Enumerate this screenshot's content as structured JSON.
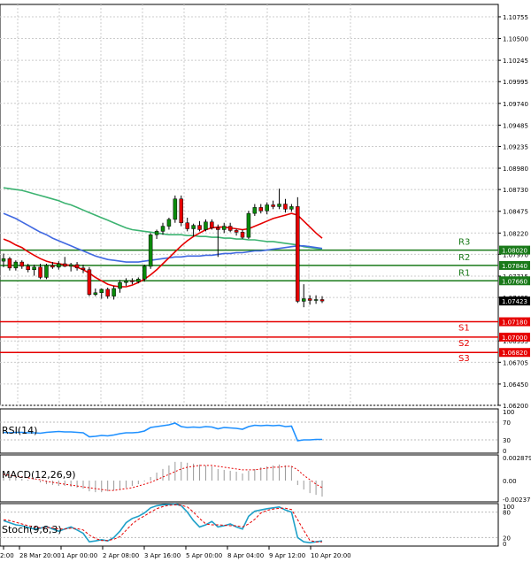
{
  "main_axis": {
    "ticks": [
      "1.10755",
      "1.10500",
      "1.10245",
      "1.09995",
      "1.09740",
      "1.09485",
      "1.09235",
      "1.08980",
      "1.08730",
      "1.08475",
      "1.08220",
      "1.07970",
      "1.07715",
      "1.07465",
      "1.06955",
      "1.06705",
      "1.06450",
      "1.06200"
    ],
    "ymin": 1.062,
    "ymax": 1.109
  },
  "price_tags": [
    {
      "label": "1.08020",
      "value": 1.0802,
      "color": "#1a7a1a"
    },
    {
      "label": "1.07840",
      "value": 1.0784,
      "color": "#1a7a1a"
    },
    {
      "label": "1.07660",
      "value": 1.0766,
      "color": "#1a7a1a"
    },
    {
      "label": "1.07423",
      "value": 1.07423,
      "color": "#000000"
    },
    {
      "label": "1.07180",
      "value": 1.0718,
      "color": "#e60000"
    },
    {
      "label": "1.07000",
      "value": 1.07,
      "color": "#e60000"
    },
    {
      "label": "1.06820",
      "value": 1.0682,
      "color": "#e60000"
    }
  ],
  "levels": [
    {
      "name": "R3",
      "value": 1.0802,
      "color": "#1a7a1a"
    },
    {
      "name": "R2",
      "value": 1.0784,
      "color": "#1a7a1a"
    },
    {
      "name": "R1",
      "value": 1.0766,
      "color": "#1a7a1a"
    },
    {
      "name": "S1",
      "value": 1.0718,
      "color": "#e60000"
    },
    {
      "name": "S2",
      "value": 1.07,
      "color": "#e60000"
    },
    {
      "name": "S3",
      "value": 1.0682,
      "color": "#e60000"
    }
  ],
  "x_axis": [
    "2:00",
    "28 Mar 20:00",
    "1 Apr 00:00",
    "2 Apr 08:00",
    "3 Apr 16:00",
    "5 Apr 00:00",
    "8 Apr 04:00",
    "9 Apr 12:00",
    "10 Apr 20:00"
  ],
  "rsi": {
    "label": "RSI(14)",
    "ticks": [
      "100",
      "70",
      "30",
      "0"
    ],
    "ymin": 0,
    "ymax": 100
  },
  "macd": {
    "label": "MACD(12,26,9)",
    "ticks": [
      "0.002879",
      "0.00",
      "-0.002379"
    ],
    "ymin": -0.002379,
    "ymax": 0.002879
  },
  "stoch": {
    "label": "Stoch(9,6,3)",
    "ticks": [
      "100",
      "80",
      "20",
      "0"
    ],
    "ymin": 0,
    "ymax": 100
  },
  "colors": {
    "bull": "#0a8a0a",
    "bear": "#e60000",
    "ma_green": "#3cb371",
    "ma_blue": "#4169e1",
    "ma_red": "#e60000",
    "rsi": "#1e90ff",
    "stoch_main": "#1fa0c8",
    "stoch_signal": "#e60000"
  },
  "chart_data": {
    "type": "candlestick",
    "candles": [
      [
        1.0789,
        1.0798,
        1.0782,
        1.0792
      ],
      [
        1.0792,
        1.0794,
        1.0778,
        1.0781
      ],
      [
        1.0781,
        1.079,
        1.0778,
        1.0788
      ],
      [
        1.0788,
        1.079,
        1.078,
        1.0783
      ],
      [
        1.0783,
        1.0786,
        1.0776,
        1.0779
      ],
      [
        1.0779,
        1.0785,
        1.0772,
        1.0782
      ],
      [
        1.0782,
        1.0786,
        1.0768,
        1.077
      ],
      [
        1.077,
        1.0786,
        1.0768,
        1.0784
      ],
      [
        1.0784,
        1.0788,
        1.078,
        1.0782
      ],
      [
        1.0782,
        1.0789,
        1.0779,
        1.0786
      ],
      [
        1.0786,
        1.0794,
        1.0782,
        1.0783
      ],
      [
        1.0783,
        1.0787,
        1.0777,
        1.0785
      ],
      [
        1.0785,
        1.0788,
        1.0778,
        1.0781
      ],
      [
        1.0781,
        1.0785,
        1.0775,
        1.0779
      ],
      [
        1.0779,
        1.0782,
        1.0748,
        1.075
      ],
      [
        1.075,
        1.0757,
        1.0748,
        1.0752
      ],
      [
        1.0752,
        1.0757,
        1.0745,
        1.0756
      ],
      [
        1.0756,
        1.0758,
        1.0745,
        1.0748
      ],
      [
        1.0748,
        1.076,
        1.0744,
        1.0757
      ],
      [
        1.0757,
        1.0767,
        1.0752,
        1.0764
      ],
      [
        1.0764,
        1.0769,
        1.076,
        1.0766
      ],
      [
        1.0766,
        1.0769,
        1.0762,
        1.0765
      ],
      [
        1.0765,
        1.077,
        1.0763,
        1.0768
      ],
      [
        1.0768,
        1.0785,
        1.0765,
        1.0783
      ],
      [
        1.0783,
        1.0822,
        1.078,
        1.082
      ],
      [
        1.082,
        1.0826,
        1.0815,
        1.0824
      ],
      [
        1.0824,
        1.0834,
        1.082,
        1.083
      ],
      [
        1.083,
        1.084,
        1.0826,
        1.0838
      ],
      [
        1.0838,
        1.0866,
        1.0834,
        1.0862
      ],
      [
        1.0862,
        1.0866,
        1.083,
        1.0834
      ],
      [
        1.0834,
        1.084,
        1.0824,
        1.0827
      ],
      [
        1.0827,
        1.0833,
        1.0818,
        1.0831
      ],
      [
        1.0831,
        1.0836,
        1.0824,
        1.0826
      ],
      [
        1.0826,
        1.0838,
        1.0824,
        1.0835
      ],
      [
        1.0835,
        1.0838,
        1.0826,
        1.0828
      ],
      [
        1.0828,
        1.0832,
        1.0794,
        1.0826
      ],
      [
        1.0826,
        1.0834,
        1.0822,
        1.083
      ],
      [
        1.083,
        1.0834,
        1.0823,
        1.0825
      ],
      [
        1.0825,
        1.0827,
        1.0819,
        1.0823
      ],
      [
        1.0823,
        1.0826,
        1.0815,
        1.0817
      ],
      [
        1.0817,
        1.0848,
        1.0815,
        1.0845
      ],
      [
        1.0845,
        1.0856,
        1.0842,
        1.0852
      ],
      [
        1.0852,
        1.0856,
        1.0845,
        1.0848
      ],
      [
        1.0848,
        1.0858,
        1.0844,
        1.0855
      ],
      [
        1.0855,
        1.086,
        1.085,
        1.0853
      ],
      [
        1.0853,
        1.0874,
        1.085,
        1.0856
      ],
      [
        1.0856,
        1.0862,
        1.0846,
        1.085
      ],
      [
        1.085,
        1.0856,
        1.0847,
        1.0853
      ],
      [
        1.0853,
        1.0864,
        1.074,
        1.0742
      ],
      [
        1.0742,
        1.0762,
        1.0735,
        1.0745
      ],
      [
        1.0745,
        1.0749,
        1.0738,
        1.0743
      ],
      [
        1.0743,
        1.0749,
        1.0739,
        1.0744
      ],
      [
        1.0744,
        1.0748,
        1.074,
        1.07423
      ]
    ],
    "ma_green": [
      1.0875,
      1.0874,
      1.0873,
      1.0872,
      1.087,
      1.0868,
      1.0866,
      1.0864,
      1.0862,
      1.086,
      1.0857,
      1.0855,
      1.0852,
      1.0849,
      1.0846,
      1.0843,
      1.084,
      1.0837,
      1.0834,
      1.0831,
      1.0828,
      1.0826,
      1.0825,
      1.0824,
      1.0823,
      1.0822,
      1.0821,
      1.082,
      1.082,
      1.082,
      1.0819,
      1.0819,
      1.0818,
      1.0818,
      1.0817,
      1.0817,
      1.0816,
      1.0816,
      1.0815,
      1.0815,
      1.0814,
      1.0814,
      1.0813,
      1.0812,
      1.0812,
      1.0811,
      1.081,
      1.0809,
      1.0808,
      1.0806,
      1.0805,
      1.0804,
      1.0803
    ],
    "ma_blue": [
      1.0845,
      1.0842,
      1.0839,
      1.0835,
      1.0831,
      1.0827,
      1.0823,
      1.082,
      1.0816,
      1.0813,
      1.081,
      1.0807,
      1.0804,
      1.0801,
      1.0798,
      1.0795,
      1.0793,
      1.0791,
      1.079,
      1.0789,
      1.0788,
      1.0788,
      1.0788,
      1.0789,
      1.079,
      1.0791,
      1.0792,
      1.0793,
      1.0794,
      1.0794,
      1.0795,
      1.0795,
      1.0795,
      1.0796,
      1.0796,
      1.0797,
      1.0798,
      1.0798,
      1.0799,
      1.0799,
      1.08,
      1.0801,
      1.0801,
      1.0802,
      1.0803,
      1.0804,
      1.0805,
      1.0806,
      1.0807,
      1.0807,
      1.0806,
      1.0805,
      1.0804
    ],
    "ma_red": [
      1.0815,
      1.0812,
      1.0808,
      1.0805,
      1.08,
      1.0796,
      1.0792,
      1.0789,
      1.0787,
      1.0786,
      1.0785,
      1.0784,
      1.0782,
      1.0779,
      1.0775,
      1.077,
      1.0766,
      1.0762,
      1.076,
      1.0759,
      1.0759,
      1.0761,
      1.0764,
      1.0768,
      1.0773,
      1.0779,
      1.0786,
      1.0793,
      1.08,
      1.0807,
      1.0813,
      1.0818,
      1.0822,
      1.0826,
      1.0828,
      1.0829,
      1.0829,
      1.0828,
      1.0827,
      1.0826,
      1.0827,
      1.083,
      1.0833,
      1.0836,
      1.0839,
      1.0841,
      1.0843,
      1.0845,
      1.0843,
      1.0836,
      1.0829,
      1.0822,
      1.0816
    ],
    "rsi": [
      47,
      46,
      47,
      47,
      46,
      46,
      45,
      47,
      48,
      49,
      48,
      48,
      47,
      46,
      37,
      38,
      40,
      39,
      41,
      44,
      46,
      46,
      47,
      50,
      58,
      60,
      62,
      64,
      68,
      60,
      58,
      59,
      58,
      60,
      59,
      55,
      58,
      57,
      56,
      54,
      60,
      63,
      62,
      63,
      62,
      63,
      60,
      61,
      28,
      30,
      30,
      31,
      31
    ],
    "macd_hist": [
      0.0005,
      0.0004,
      0.0003,
      0.0002,
      0.0001,
      0.0,
      -0.0002,
      -0.0004,
      -0.0005,
      -0.0006,
      -0.0006,
      -0.0007,
      -0.0008,
      -0.0009,
      -0.0012,
      -0.0013,
      -0.0013,
      -0.0012,
      -0.0011,
      -0.001,
      -0.0008,
      -0.0006,
      -0.0004,
      -0.0001,
      0.0004,
      0.0009,
      0.0013,
      0.0017,
      0.0021,
      0.0021,
      0.002,
      0.0019,
      0.0018,
      0.0017,
      0.0016,
      0.0013,
      0.0012,
      0.0011,
      0.001,
      0.0008,
      0.0011,
      0.0013,
      0.0015,
      0.0016,
      0.0017,
      0.0018,
      0.0017,
      0.0016,
      -0.0005,
      -0.001,
      -0.0014,
      -0.0016,
      -0.0018
    ],
    "macd_signal": [
      0.0007,
      0.0006,
      0.0005,
      0.0004,
      0.0003,
      0.0002,
      0.0001,
      -0.0001,
      -0.0002,
      -0.0003,
      -0.0004,
      -0.0005,
      -0.0006,
      -0.0007,
      -0.0008,
      -0.0009,
      -0.001,
      -0.0011,
      -0.0011,
      -0.001,
      -0.0009,
      -0.0008,
      -0.0006,
      -0.0004,
      -0.0002,
      0.0001,
      0.0004,
      0.0007,
      0.001,
      0.0013,
      0.0015,
      0.0016,
      0.0017,
      0.0017,
      0.0017,
      0.0016,
      0.0015,
      0.0014,
      0.0013,
      0.0012,
      0.0012,
      0.0012,
      0.0013,
      0.0014,
      0.0015,
      0.0015,
      0.0016,
      0.0016,
      0.0012,
      0.0006,
      0.0001,
      -0.0004,
      -0.0008
    ],
    "stoch_main": [
      60,
      55,
      50,
      48,
      44,
      40,
      42,
      46,
      40,
      35,
      40,
      45,
      38,
      30,
      10,
      12,
      15,
      12,
      20,
      35,
      55,
      65,
      70,
      78,
      90,
      95,
      97,
      98,
      99,
      95,
      80,
      60,
      45,
      50,
      58,
      45,
      48,
      52,
      45,
      40,
      70,
      82,
      85,
      88,
      90,
      92,
      85,
      80,
      20,
      10,
      8,
      10,
      12
    ],
    "stoch_signal": [
      62,
      60,
      56,
      52,
      48,
      45,
      43,
      44,
      43,
      40,
      40,
      42,
      41,
      38,
      26,
      18,
      13,
      13,
      16,
      22,
      37,
      52,
      63,
      71,
      80,
      88,
      93,
      96,
      97,
      96,
      92,
      80,
      65,
      52,
      50,
      50,
      49,
      48,
      48,
      45,
      52,
      63,
      78,
      84,
      87,
      89,
      89,
      86,
      62,
      37,
      13,
      10,
      10
    ]
  }
}
